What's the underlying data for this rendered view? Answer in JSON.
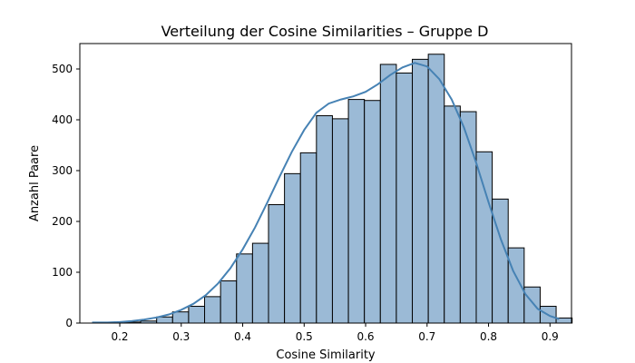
{
  "chart_data": {
    "type": "histogram",
    "title": "Verteilung der Cosine Similarities – Gruppe D",
    "xlabel": "Cosine Similarity",
    "ylabel": "Anzahl Paare",
    "xlim": [
      0.135,
      0.935
    ],
    "ylim": [
      0,
      550
    ],
    "xticks": [
      "0.2",
      "0.3",
      "0.4",
      "0.5",
      "0.6",
      "0.7",
      "0.8",
      "0.9"
    ],
    "xtick_values": [
      0.2,
      0.3,
      0.4,
      0.5,
      0.6,
      0.7,
      0.8,
      0.9
    ],
    "yticks": [
      "0",
      "100",
      "200",
      "300",
      "400",
      "500"
    ],
    "ytick_values": [
      0,
      100,
      200,
      300,
      400,
      500
    ],
    "bins": [
      {
        "x0": 0.156,
        "x1": 0.182,
        "count": 1
      },
      {
        "x0": 0.182,
        "x1": 0.208,
        "count": 0
      },
      {
        "x0": 0.208,
        "x1": 0.234,
        "count": 2
      },
      {
        "x0": 0.234,
        "x1": 0.26,
        "count": 4
      },
      {
        "x0": 0.26,
        "x1": 0.286,
        "count": 12
      },
      {
        "x0": 0.286,
        "x1": 0.312,
        "count": 22
      },
      {
        "x0": 0.312,
        "x1": 0.338,
        "count": 33
      },
      {
        "x0": 0.338,
        "x1": 0.364,
        "count": 52
      },
      {
        "x0": 0.364,
        "x1": 0.39,
        "count": 83
      },
      {
        "x0": 0.39,
        "x1": 0.416,
        "count": 136
      },
      {
        "x0": 0.416,
        "x1": 0.442,
        "count": 157
      },
      {
        "x0": 0.442,
        "x1": 0.468,
        "count": 233
      },
      {
        "x0": 0.468,
        "x1": 0.494,
        "count": 294
      },
      {
        "x0": 0.494,
        "x1": 0.52,
        "count": 335
      },
      {
        "x0": 0.52,
        "x1": 0.546,
        "count": 408
      },
      {
        "x0": 0.546,
        "x1": 0.572,
        "count": 402
      },
      {
        "x0": 0.572,
        "x1": 0.598,
        "count": 440
      },
      {
        "x0": 0.598,
        "x1": 0.624,
        "count": 438
      },
      {
        "x0": 0.624,
        "x1": 0.65,
        "count": 509
      },
      {
        "x0": 0.65,
        "x1": 0.676,
        "count": 492
      },
      {
        "x0": 0.676,
        "x1": 0.702,
        "count": 519
      },
      {
        "x0": 0.702,
        "x1": 0.728,
        "count": 529
      },
      {
        "x0": 0.728,
        "x1": 0.754,
        "count": 427
      },
      {
        "x0": 0.754,
        "x1": 0.78,
        "count": 416
      },
      {
        "x0": 0.78,
        "x1": 0.806,
        "count": 337
      },
      {
        "x0": 0.806,
        "x1": 0.832,
        "count": 244
      },
      {
        "x0": 0.832,
        "x1": 0.858,
        "count": 148
      },
      {
        "x0": 0.858,
        "x1": 0.884,
        "count": 71
      },
      {
        "x0": 0.884,
        "x1": 0.91,
        "count": 33
      },
      {
        "x0": 0.91,
        "x1": 0.936,
        "count": 10
      }
    ],
    "kde": {
      "x": [
        0.155,
        0.18,
        0.2,
        0.22,
        0.24,
        0.26,
        0.28,
        0.3,
        0.32,
        0.34,
        0.36,
        0.38,
        0.4,
        0.42,
        0.44,
        0.46,
        0.48,
        0.5,
        0.52,
        0.54,
        0.56,
        0.58,
        0.6,
        0.62,
        0.64,
        0.66,
        0.68,
        0.7,
        0.72,
        0.74,
        0.76,
        0.78,
        0.8,
        0.82,
        0.84,
        0.86,
        0.88,
        0.9,
        0.915
      ],
      "y": [
        1,
        1,
        2,
        4,
        7,
        11,
        17,
        26,
        38,
        55,
        78,
        108,
        145,
        188,
        237,
        288,
        337,
        380,
        414,
        432,
        440,
        446,
        455,
        470,
        488,
        503,
        512,
        505,
        480,
        440,
        385,
        315,
        238,
        165,
        103,
        57,
        28,
        14,
        8
      ]
    },
    "colors": {
      "bar_fill": "#9bbad6",
      "bar_edge": "#000000",
      "kde_line": "#4682b4"
    },
    "grid": false,
    "legend": "none"
  }
}
